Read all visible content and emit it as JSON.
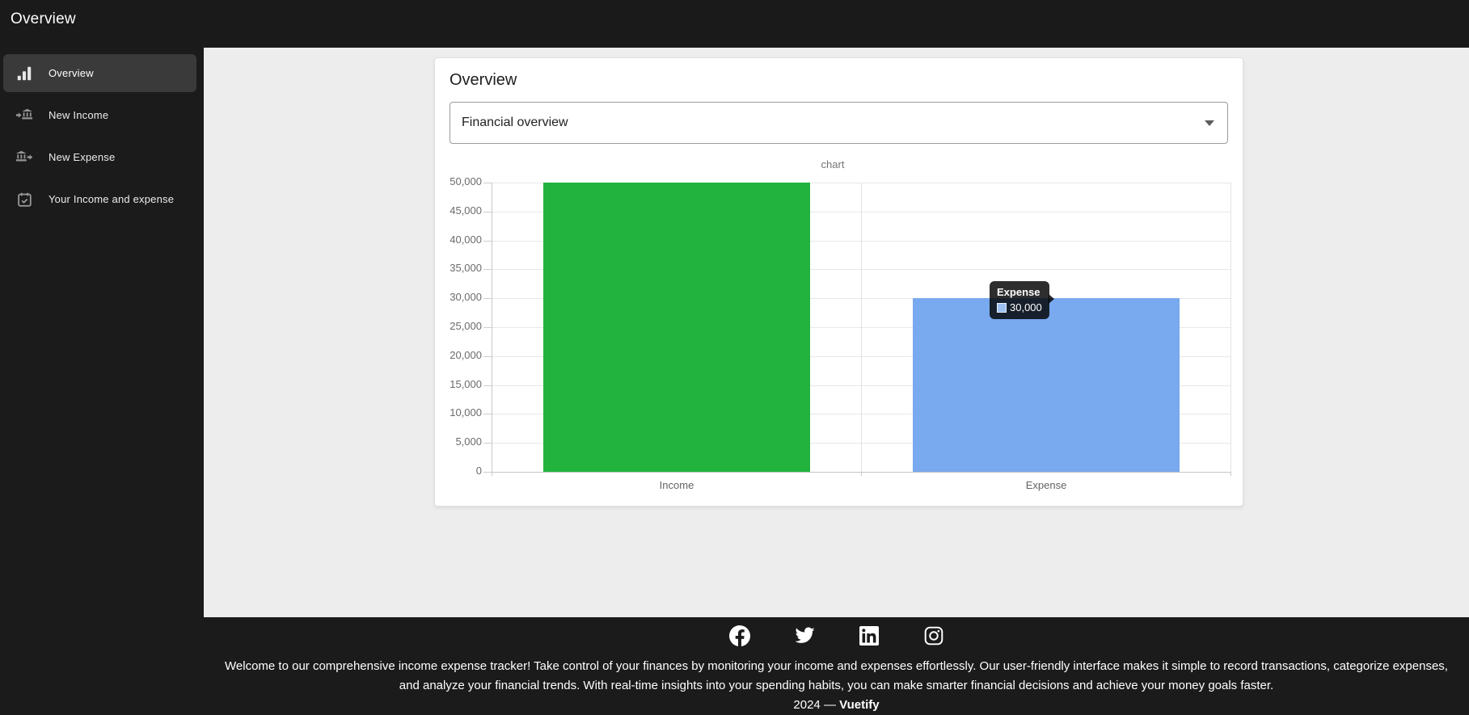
{
  "header": {
    "title": "Overview"
  },
  "sidebar": {
    "items": [
      {
        "label": "Overview",
        "icon": "bar-chart-icon",
        "selected": true
      },
      {
        "label": "New Income",
        "icon": "bank-transfer-in-icon",
        "selected": false
      },
      {
        "label": "New Expense",
        "icon": "bank-transfer-out-icon",
        "selected": false
      },
      {
        "label": "Your Income and expense",
        "icon": "calendar-check-icon",
        "selected": false
      }
    ]
  },
  "main": {
    "card": {
      "title": "Overview",
      "select": {
        "value": "Financial overview"
      }
    }
  },
  "chart_data": {
    "type": "bar",
    "title": "chart",
    "categories": [
      "Income",
      "Expense"
    ],
    "values": [
      50000,
      30000
    ],
    "colors": [
      "#22b33e",
      "#79a9ee"
    ],
    "xlabel": "",
    "ylabel": "",
    "ylim": [
      0,
      50000
    ],
    "ytick_step": 5000,
    "ytick_labels": [
      "0",
      "5,000",
      "10,000",
      "15,000",
      "20,000",
      "25,000",
      "30,000",
      "35,000",
      "40,000",
      "45,000",
      "50,000"
    ],
    "grid": true,
    "legend": "none",
    "tooltip": {
      "title": "Expense",
      "value": "30,000",
      "swatch_color": "#79a9ee"
    }
  },
  "footer": {
    "social": [
      "facebook",
      "twitter",
      "linkedin",
      "instagram"
    ],
    "description": "Welcome to our comprehensive income expense tracker! Take control of your finances by monitoring your income and expenses effortlessly. Our user-friendly interface makes it simple to record transactions, categorize expenses, and analyze your financial trends. With real-time insights into your spending habits, you can make smarter financial decisions and achieve your money goals faster.",
    "year": "2024",
    "separator": "—",
    "brand": "Vuetify"
  }
}
